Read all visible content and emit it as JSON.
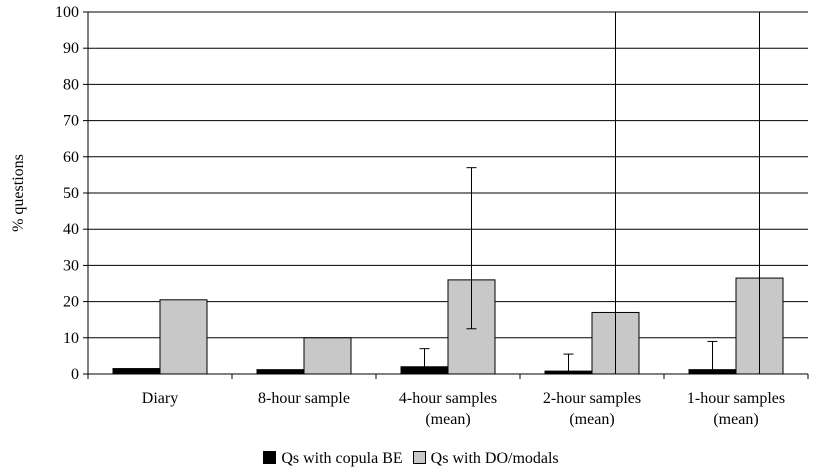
{
  "chart_data": {
    "type": "bar",
    "title": "",
    "xlabel": "",
    "ylabel": "% questions",
    "ylim": [
      0,
      100
    ],
    "yticks": [
      0,
      10,
      20,
      30,
      40,
      50,
      60,
      70,
      80,
      90,
      100
    ],
    "grid": true,
    "legend_position": "bottom",
    "categories": [
      [
        "Diary"
      ],
      [
        "8-hour sample"
      ],
      [
        "4-hour samples",
        "(mean)"
      ],
      [
        "2-hour samples",
        "(mean)"
      ],
      [
        "1-hour samples",
        "(mean)"
      ]
    ],
    "series": [
      {
        "name": "Qs with copula BE",
        "color": "#000000",
        "values": [
          1.5,
          1.2,
          2.0,
          0.8,
          1.2
        ],
        "error_upper": [
          null,
          null,
          7.0,
          5.5,
          9.0
        ],
        "error_lower": [
          null,
          null,
          null,
          null,
          null
        ]
      },
      {
        "name": "Qs with DO/modals",
        "color": "#c8c8c8",
        "values": [
          20.5,
          10.0,
          26.0,
          17.0,
          26.5
        ],
        "error_upper": [
          null,
          null,
          57.0,
          100,
          100
        ],
        "error_lower": [
          null,
          null,
          12.5,
          0,
          0
        ]
      }
    ]
  }
}
